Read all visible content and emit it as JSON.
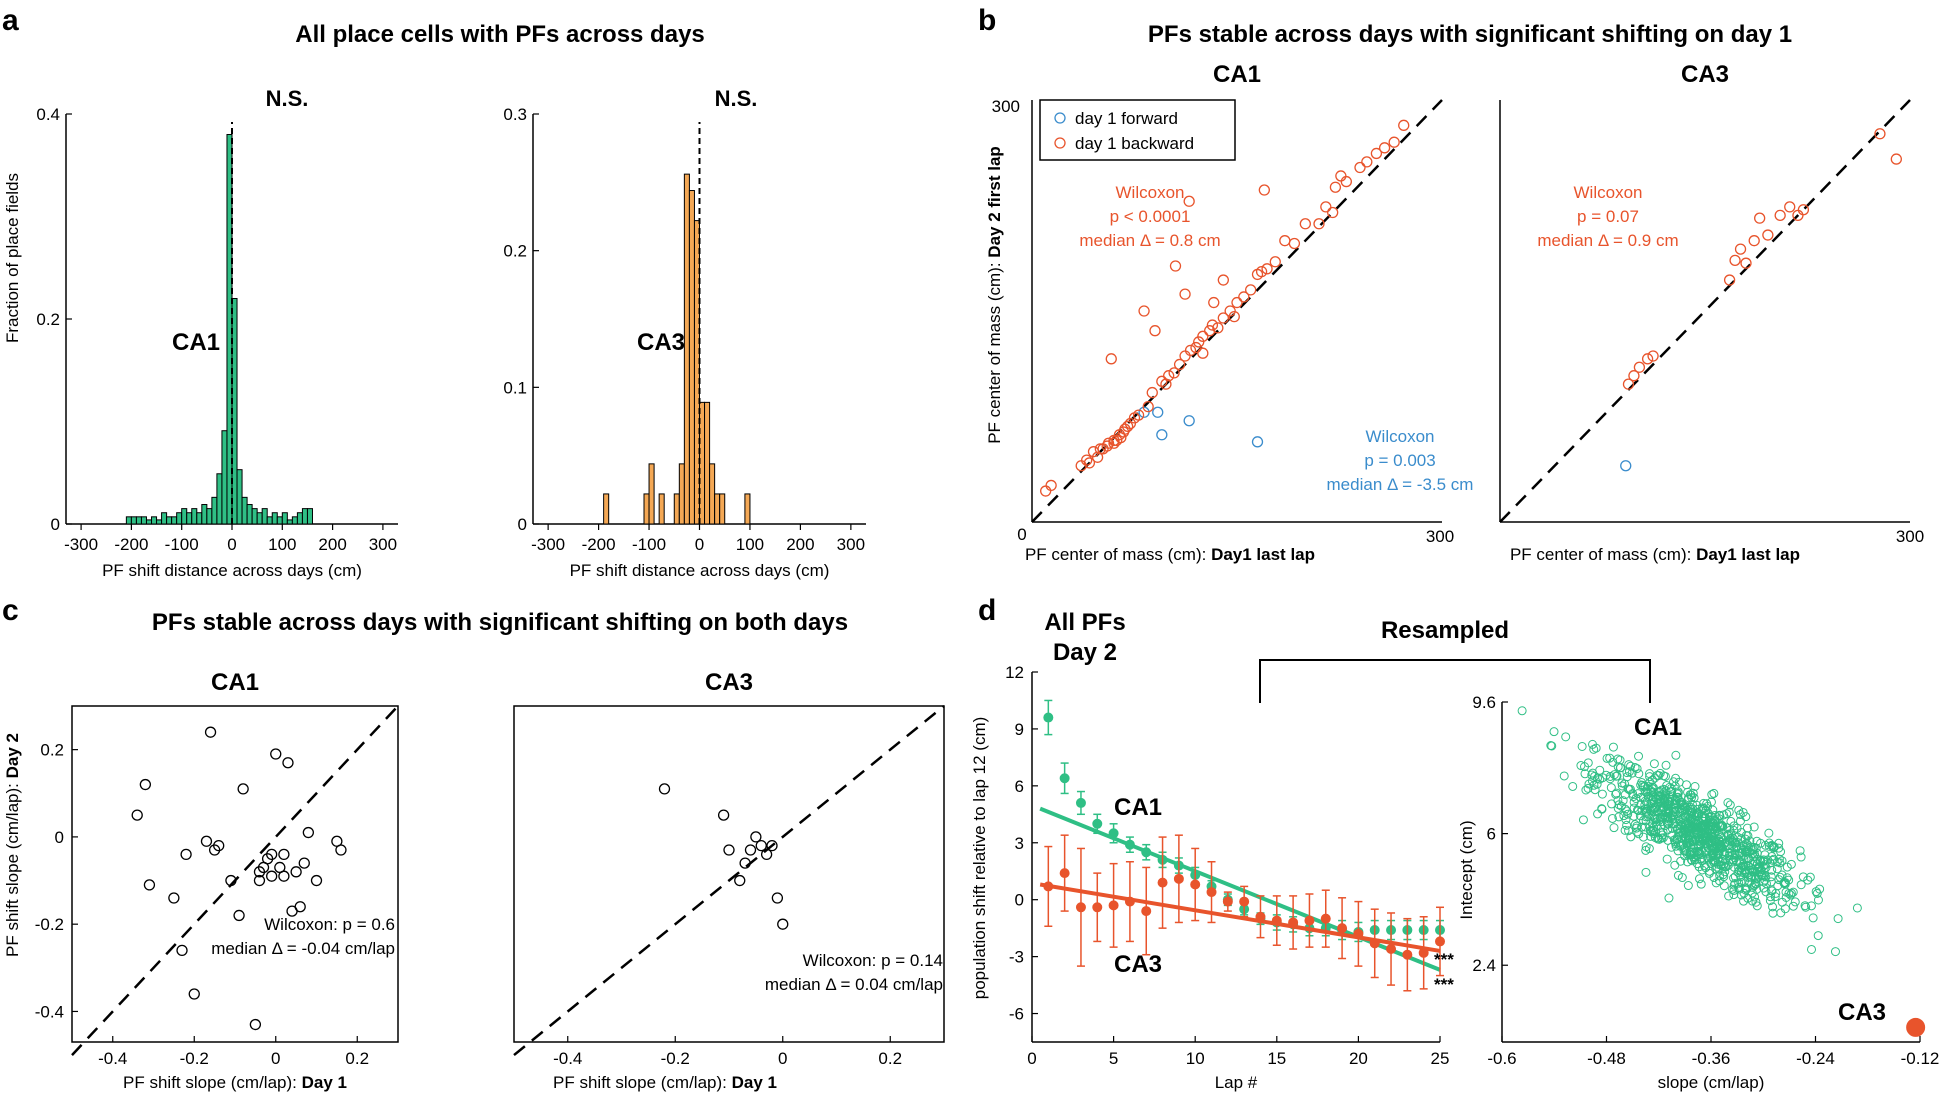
{
  "colors": {
    "green": "#2fbf85",
    "orange": "#f4a855",
    "red": "#e8542c",
    "blue": "#3a8ccc",
    "black": "#000000"
  },
  "panel_a": {
    "letter": "a",
    "title": "All place cells with PFs across days",
    "ylabel": "Fraction of place fields",
    "ns1": "N.S.",
    "ns2": "N.S."
  },
  "panel_b": {
    "letter": "b",
    "title": "PFs stable across days with significant shifting on day 1",
    "ylabel_plain": "PF center of mass (cm): ",
    "ylabel_bold": "Day 2 first lap",
    "xlabel_plain": "PF center of mass (cm): ",
    "xlabel_bold": "Day1 last lap",
    "legend_forward": "day 1 forward",
    "legend_backward": "day 1 backward",
    "ca1_red_stats": [
      "Wilcoxon",
      "p < 0.0001",
      "median Δ = 0.8 cm"
    ],
    "ca1_blue_stats": [
      "Wilcoxon",
      "p = 0.003",
      "median Δ = -3.5 cm"
    ],
    "ca3_red_stats": [
      "Wilcoxon",
      "p = 0.07",
      "median Δ = 0.9 cm"
    ]
  },
  "panel_c": {
    "letter": "c",
    "title": "PFs stable across days with significant shifting on both days",
    "ylabel_plain": "PF shift slope (cm/lap): ",
    "ylabel_bold": "Day 2",
    "xlabel_plain": "PF shift slope (cm/lap): ",
    "xlabel_bold": "Day 1",
    "ca1_stats": [
      "Wilcoxon: p = 0.6",
      "median Δ = -0.04 cm/lap"
    ],
    "ca3_stats": [
      "Wilcoxon: p = 0.14",
      "median Δ = 0.04 cm/lap"
    ]
  },
  "panel_d": {
    "letter": "d",
    "title_lines": [
      "All PFs",
      "Day 2"
    ],
    "resampled": "Resampled",
    "stars": "***"
  },
  "chart_data": [
    {
      "id": "a-ca1",
      "type": "bar",
      "title": "CA1",
      "xlabel": "PF shift distance across days (cm)",
      "ylabel": "Fraction of place fields",
      "xlim": [
        -330,
        330
      ],
      "ylim": [
        0,
        0.4
      ],
      "xticks": [
        -300,
        -200,
        -100,
        0,
        100,
        200,
        300
      ],
      "yticks": [
        0,
        0.2,
        0.4
      ],
      "ytick_labels": [
        "0",
        "0.2",
        "0.4"
      ],
      "bin_width": 10,
      "bins": [
        -205,
        -195,
        -185,
        -175,
        -165,
        -155,
        -145,
        -135,
        -125,
        -115,
        -105,
        -95,
        -85,
        -75,
        -65,
        -55,
        -45,
        -35,
        -25,
        -15,
        -5,
        5,
        15,
        25,
        35,
        45,
        55,
        65,
        75,
        85,
        95,
        105,
        115,
        125,
        135,
        145,
        155
      ],
      "values": [
        0.007,
        0.007,
        0.007,
        0.007,
        0.004,
        0.007,
        0.004,
        0.011,
        0.007,
        0.007,
        0.011,
        0.015,
        0.011,
        0.015,
        0.011,
        0.019,
        0.015,
        0.026,
        0.049,
        0.091,
        0.38,
        0.22,
        0.053,
        0.026,
        0.019,
        0.015,
        0.011,
        0.015,
        0.007,
        0.011,
        0.007,
        0.011,
        0.004,
        0.007,
        0.011,
        0.015,
        0.015
      ],
      "ns_label": "N.S."
    },
    {
      "id": "a-ca3",
      "type": "bar",
      "title": "CA3",
      "xlabel": "PF shift distance across days (cm)",
      "ylabel": "",
      "xlim": [
        -330,
        330
      ],
      "ylim": [
        0,
        0.3
      ],
      "xticks": [
        -300,
        -200,
        -100,
        0,
        100,
        200,
        300
      ],
      "yticks": [
        0,
        0.1,
        0.2,
        0.3
      ],
      "ytick_labels": [
        "0",
        "0.1",
        "0.2",
        "0.3"
      ],
      "bin_width": 10,
      "bins": [
        -185,
        -105,
        -95,
        -75,
        -45,
        -35,
        -25,
        -15,
        -5,
        5,
        15,
        25,
        35,
        45,
        95
      ],
      "values": [
        0.022,
        0.022,
        0.044,
        0.022,
        0.022,
        0.044,
        0.256,
        0.244,
        0.222,
        0.089,
        0.089,
        0.044,
        0.022,
        0.022,
        0.022
      ],
      "ns_label": "N.S."
    },
    {
      "id": "b-ca1",
      "type": "scatter",
      "title": "CA1",
      "xlim": [
        0,
        300
      ],
      "ylim": [
        0,
        300
      ],
      "xtick_labels": [
        "0",
        "300"
      ],
      "ytick_labels": [
        "300"
      ],
      "identity_line": true,
      "series": [
        {
          "name": "day 1 forward",
          "color": "#3a8ccc",
          "x": [
            82,
            92,
            95,
            115,
            165
          ],
          "y": [
            78,
            78,
            62,
            72,
            57
          ]
        },
        {
          "name": "day 1 backward",
          "color": "#e8542c",
          "x": [
            10,
            14,
            36,
            40,
            45,
            50,
            55,
            60,
            62,
            65,
            67,
            70,
            75,
            42,
            48,
            52,
            56,
            60,
            64,
            68,
            72,
            78,
            85,
            88,
            95,
            98,
            100,
            104,
            108,
            112,
            116,
            120,
            122,
            125,
            130,
            132,
            136,
            140,
            145,
            150,
            155,
            160,
            165,
            168,
            172,
            178,
            185,
            192,
            200,
            210,
            215,
            220,
            222,
            226,
            230,
            240,
            245,
            252,
            258,
            265,
            272,
            140,
            105,
            115,
            90,
            170,
            112,
            82,
            58,
            133,
            148,
            125
          ],
          "y": [
            22,
            26,
            40,
            44,
            50,
            52,
            54,
            56,
            58,
            60,
            64,
            68,
            74,
            42,
            46,
            52,
            56,
            58,
            62,
            66,
            70,
            76,
            82,
            92,
            100,
            98,
            104,
            106,
            112,
            118,
            122,
            124,
            128,
            132,
            136,
            140,
            138,
            145,
            150,
            156,
            160,
            165,
            176,
            178,
            180,
            185,
            200,
            198,
            212,
            212,
            224,
            220,
            238,
            246,
            242,
            252,
            256,
            262,
            266,
            270,
            282,
            172,
            182,
            228,
            136,
            236,
            162,
            150,
            116,
            156,
            146,
            120
          ]
        }
      ]
    },
    {
      "id": "b-ca3",
      "type": "scatter",
      "title": "CA3",
      "xlim": [
        0,
        300
      ],
      "ylim": [
        0,
        300
      ],
      "xtick_labels": [
        "300"
      ],
      "ytick_labels": [],
      "identity_line": true,
      "series": [
        {
          "name": "day 1 forward",
          "color": "#3a8ccc",
          "x": [
            92
          ],
          "y": [
            40
          ]
        },
        {
          "name": "day 1 backward",
          "color": "#e8542c",
          "x": [
            94,
            98,
            102,
            108,
            112,
            168,
            172,
            176,
            180,
            186,
            190,
            196,
            205,
            212,
            218,
            222,
            278,
            290
          ],
          "y": [
            98,
            104,
            110,
            116,
            118,
            172,
            186,
            194,
            184,
            200,
            216,
            204,
            218,
            224,
            218,
            222,
            276,
            258
          ]
        }
      ]
    },
    {
      "id": "c-ca1",
      "type": "scatter",
      "title": "CA1",
      "xlim": [
        -0.5,
        0.3
      ],
      "ylim": [
        -0.47,
        0.3
      ],
      "xticks": [
        -0.4,
        -0.2,
        0,
        0.2
      ],
      "yticks": [
        -0.4,
        -0.2,
        0,
        0.2
      ],
      "xtick_labels": [
        "-0.4",
        "-0.2",
        "0",
        "0.2"
      ],
      "ytick_labels": [
        "-0.4",
        "-0.2",
        "0",
        "0.2"
      ],
      "identity_line": true,
      "series": [
        {
          "name": "neurons",
          "color": "#000000",
          "x": [
            -0.34,
            -0.32,
            -0.31,
            -0.25,
            -0.23,
            -0.22,
            -0.2,
            -0.17,
            -0.16,
            -0.15,
            -0.14,
            -0.11,
            -0.09,
            -0.08,
            -0.05,
            -0.04,
            -0.04,
            -0.03,
            -0.02,
            -0.01,
            -0.01,
            0.0,
            0.01,
            0.02,
            0.02,
            0.03,
            0.04,
            0.05,
            0.06,
            0.07,
            0.08,
            0.1,
            0.15,
            0.16
          ],
          "y": [
            0.05,
            0.12,
            -0.11,
            -0.14,
            -0.26,
            -0.04,
            -0.36,
            -0.01,
            0.24,
            -0.03,
            -0.02,
            -0.1,
            -0.18,
            0.11,
            -0.43,
            -0.1,
            -0.08,
            -0.07,
            -0.05,
            -0.04,
            -0.09,
            0.19,
            -0.07,
            -0.09,
            -0.04,
            0.17,
            -0.17,
            -0.08,
            -0.16,
            -0.06,
            0.01,
            -0.1,
            -0.01,
            -0.03
          ]
        }
      ]
    },
    {
      "id": "c-ca3",
      "type": "scatter",
      "title": "CA3",
      "xlim": [
        -0.5,
        0.3
      ],
      "ylim": [
        -0.47,
        0.3
      ],
      "xticks": [
        -0.4,
        -0.2,
        0,
        0.2
      ],
      "xtick_labels": [
        "-0.4",
        "-0.2",
        "0",
        "0.2"
      ],
      "identity_line": true,
      "series": [
        {
          "name": "neurons",
          "color": "#000000",
          "x": [
            -0.22,
            -0.11,
            -0.1,
            -0.08,
            -0.07,
            -0.06,
            -0.05,
            -0.04,
            -0.03,
            -0.02,
            -0.01,
            0.0
          ],
          "y": [
            0.11,
            0.05,
            -0.03,
            -0.1,
            -0.06,
            -0.03,
            0.0,
            -0.02,
            -0.04,
            -0.02,
            -0.14,
            -0.2
          ]
        }
      ]
    },
    {
      "id": "d-left",
      "type": "line",
      "title": "All PFs Day 2",
      "xlabel": "Lap #",
      "ylabel": "population shift relative to lap 12 (cm)",
      "xlim": [
        0,
        25
      ],
      "ylim": [
        -7.5,
        12
      ],
      "xticks": [
        0,
        5,
        10,
        15,
        20,
        25
      ],
      "yticks": [
        -6,
        -3,
        0,
        3,
        6,
        9,
        12
      ],
      "x": [
        1,
        2,
        3,
        4,
        5,
        6,
        7,
        8,
        9,
        10,
        11,
        12,
        13,
        14,
        15,
        16,
        17,
        18,
        19,
        20,
        21,
        22,
        23,
        24,
        25
      ],
      "series": [
        {
          "name": "CA1",
          "color": "#2fbf85",
          "values": [
            9.6,
            6.4,
            5.1,
            4.0,
            3.5,
            2.9,
            2.5,
            2.1,
            1.8,
            1.3,
            0.7,
            0.0,
            -0.5,
            -1.0,
            -1.2,
            -1.3,
            -1.5,
            -1.5,
            -1.6,
            -1.7,
            -1.6,
            -1.6,
            -1.6,
            -1.6,
            -1.6
          ],
          "errors": [
            0.9,
            0.8,
            0.6,
            0.5,
            0.5,
            0.4,
            0.4,
            0.4,
            0.4,
            0.4,
            0.3,
            0.3,
            0.3,
            0.3,
            0.4,
            0.4,
            0.4,
            0.4,
            0.5,
            0.5,
            0.5,
            0.5,
            0.5,
            0.5,
            0.5
          ],
          "fit": [
            [
              0.5,
              4.8
            ],
            [
              25,
              -3.7
            ]
          ],
          "label": "CA1"
        },
        {
          "name": "CA3",
          "color": "#e8542c",
          "values": [
            0.7,
            1.4,
            -0.4,
            -0.4,
            -0.3,
            -0.1,
            -0.6,
            0.9,
            1.1,
            0.8,
            0.4,
            -0.1,
            -0.1,
            -0.9,
            -1.1,
            -1.2,
            -1.1,
            -1.0,
            -1.5,
            -1.8,
            -2.3,
            -2.6,
            -2.9,
            -2.8,
            -2.2
          ],
          "errors": [
            2.1,
            2.0,
            3.1,
            1.8,
            2.2,
            2.1,
            2.3,
            2.4,
            2.3,
            1.9,
            1.6,
            0.5,
            0.8,
            1.1,
            1.3,
            1.4,
            1.4,
            1.5,
            1.6,
            1.7,
            1.8,
            1.9,
            1.9,
            1.9,
            1.8
          ],
          "fit": [
            [
              0.5,
              0.8
            ],
            [
              25,
              -2.7
            ]
          ],
          "label": "CA3"
        }
      ]
    },
    {
      "id": "d-right",
      "type": "scatter",
      "title": "Resampled",
      "xlabel": "slope (cm/lap)",
      "ylabel": "Intecept (cm)",
      "xlim": [
        -0.6,
        -0.12
      ],
      "ylim": [
        0.3,
        9.6
      ],
      "xticks": [
        -0.6,
        -0.48,
        -0.36,
        -0.24,
        -0.12
      ],
      "yticks": [
        2.4,
        6,
        9.6
      ],
      "xtick_labels": [
        "-0.6",
        "-0.48",
        "-0.36",
        "-0.24",
        "-0.12"
      ],
      "ytick_labels": [
        "2.4",
        "6",
        "9.6"
      ],
      "series": [
        {
          "name": "CA1 resampled",
          "color": "#2fbf85",
          "n": 900,
          "mean_slope": -0.375,
          "slope_sd": 0.058,
          "intercept_fn": "6.0 - 13.5*(slope+0.375)",
          "intercept_sd": 0.55
        },
        {
          "name": "CA3",
          "color": "#e8542c",
          "x": [
            -0.125
          ],
          "y": [
            0.7
          ]
        }
      ],
      "labels": [
        "CA1",
        "CA3"
      ]
    }
  ]
}
